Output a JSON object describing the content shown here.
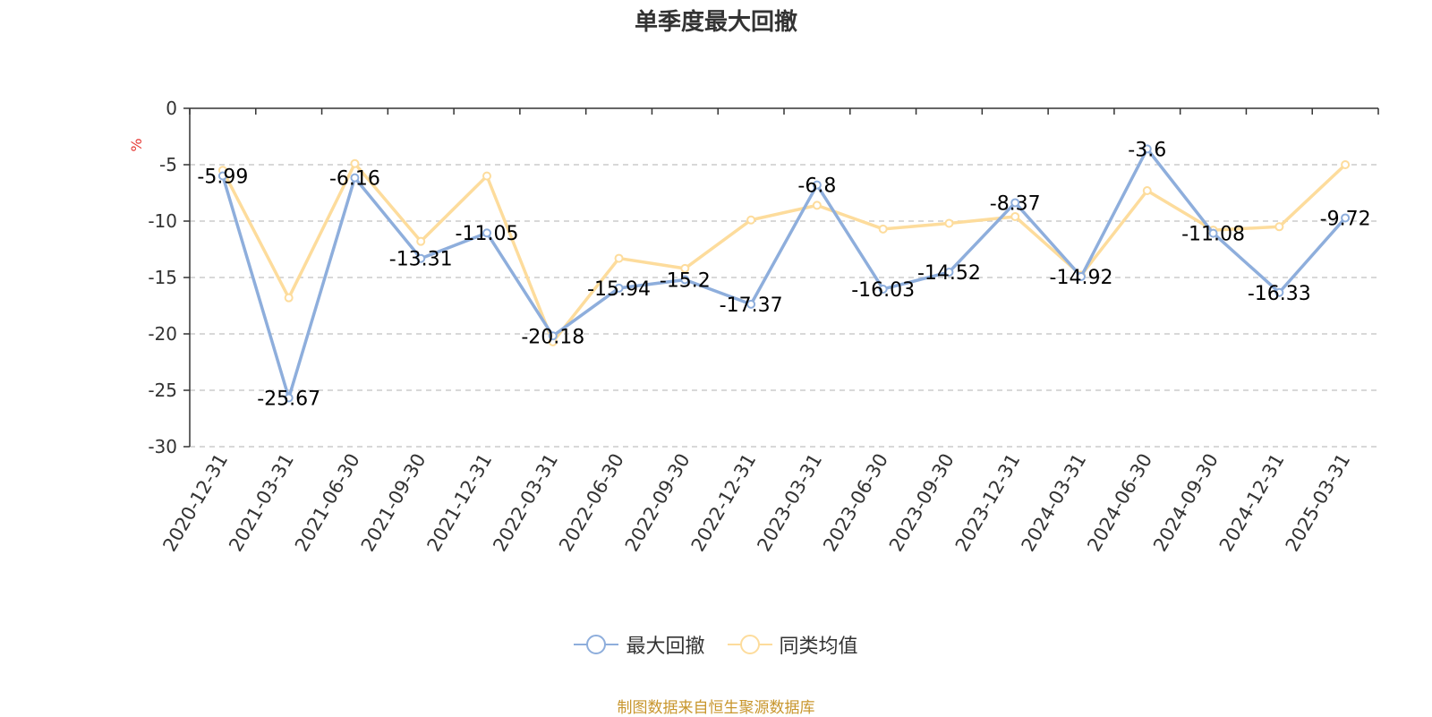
{
  "source_note": "制图数据来自恒生聚源数据库",
  "colors": {
    "series1": "#8eaedc",
    "series2": "#fddc9c",
    "source": "#c8962d",
    "unit": "#e53935"
  },
  "chart_data": {
    "type": "line",
    "title": "单季度最大回撤",
    "ylabel": "%",
    "ylim": [
      -30,
      0
    ],
    "yticks": [
      0,
      -5,
      -10,
      -15,
      -20,
      -25,
      -30
    ],
    "grid": true,
    "legend_position": "bottom-center",
    "categories": [
      "2020-12-31",
      "2021-03-31",
      "2021-06-30",
      "2021-09-30",
      "2021-12-31",
      "2022-03-31",
      "2022-06-30",
      "2022-09-30",
      "2022-12-31",
      "2023-03-31",
      "2023-06-30",
      "2023-09-30",
      "2023-12-31",
      "2024-03-31",
      "2024-06-30",
      "2024-09-30",
      "2024-12-31",
      "2025-03-31"
    ],
    "series": [
      {
        "name": "最大回撤",
        "values": [
          -5.99,
          -25.67,
          -6.16,
          -13.31,
          -11.05,
          -20.18,
          -15.94,
          -15.2,
          -17.37,
          -6.8,
          -16.03,
          -14.52,
          -8.37,
          -14.92,
          -3.6,
          -11.08,
          -16.33,
          -9.72
        ],
        "labels": [
          "-5.99",
          "-25.67",
          "-6.16",
          "-13.31",
          "-11.05",
          "-20.18",
          "-15.94",
          "-15.2",
          "-17.37",
          "-6.8",
          "-16.03",
          "-14.52",
          "-8.37",
          "-14.92",
          "-3.6",
          "-11.08",
          "-16.33",
          "-9.72"
        ]
      },
      {
        "name": "同类均值",
        "values": [
          -5.5,
          -16.8,
          -4.9,
          -11.8,
          -6.0,
          -20.7,
          -13.3,
          -14.2,
          -9.9,
          -8.6,
          -10.7,
          -10.2,
          -9.6,
          -14.8,
          -7.3,
          -10.8,
          -10.5,
          -5.0
        ]
      }
    ]
  }
}
